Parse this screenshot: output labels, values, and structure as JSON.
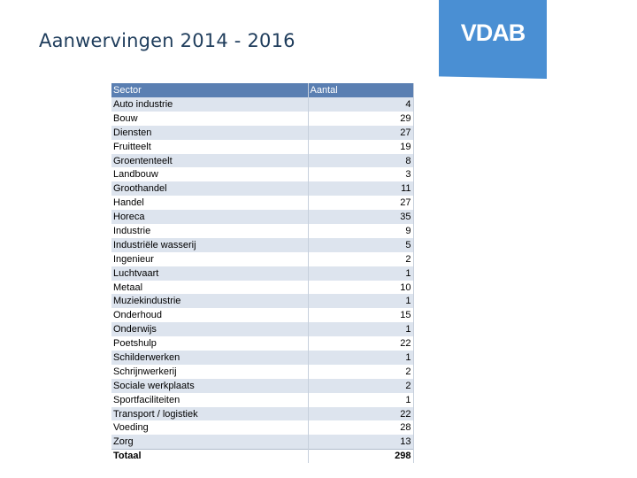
{
  "title": "Aanwervingen 2014 - 2016",
  "logo": {
    "text": "VDAB",
    "color": "#4a8fd3"
  },
  "table": {
    "headers": {
      "sector": "Sector",
      "count": "Aantal"
    },
    "rows": [
      {
        "sector": "Auto industrie",
        "count": "4"
      },
      {
        "sector": "Bouw",
        "count": "29"
      },
      {
        "sector": "Diensten",
        "count": "27"
      },
      {
        "sector": "Fruitteelt",
        "count": "19"
      },
      {
        "sector": "Groententeelt",
        "count": "8"
      },
      {
        "sector": "Landbouw",
        "count": "3"
      },
      {
        "sector": "Groothandel",
        "count": "11"
      },
      {
        "sector": "Handel",
        "count": "27"
      },
      {
        "sector": "Horeca",
        "count": "35"
      },
      {
        "sector": "Industrie",
        "count": "9"
      },
      {
        "sector": "Industriële wasserij",
        "count": "5"
      },
      {
        "sector": "Ingenieur",
        "count": "2"
      },
      {
        "sector": "Luchtvaart",
        "count": "1"
      },
      {
        "sector": "Metaal",
        "count": "10"
      },
      {
        "sector": "Muziekindustrie",
        "count": "1"
      },
      {
        "sector": "Onderhoud",
        "count": "15"
      },
      {
        "sector": "Onderwijs",
        "count": "1"
      },
      {
        "sector": "Poetshulp",
        "count": "22"
      },
      {
        "sector": "Schilderwerken",
        "count": "1"
      },
      {
        "sector": "Schrijnwerkerij",
        "count": "2"
      },
      {
        "sector": "Sociale werkplaats",
        "count": "2"
      },
      {
        "sector": "Sportfaciliteiten",
        "count": "1"
      },
      {
        "sector": "Transport / logistiek",
        "count": "22"
      },
      {
        "sector": "Voeding",
        "count": "28"
      },
      {
        "sector": "Zorg",
        "count": "13"
      }
    ],
    "total": {
      "sector": "Totaal",
      "count": "298"
    }
  }
}
